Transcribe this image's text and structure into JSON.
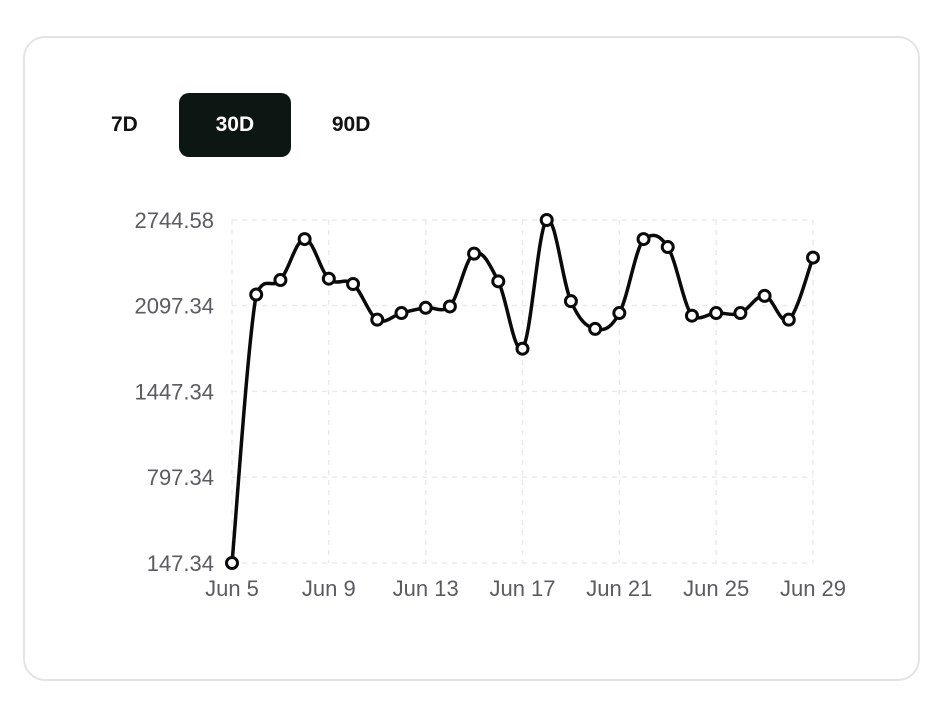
{
  "range_tabs": [
    {
      "label": "7D",
      "active": false
    },
    {
      "label": "30D",
      "active": true
    },
    {
      "label": "90D",
      "active": false
    }
  ],
  "colors": {
    "line": "#0a0a0a",
    "grid": "#ebebeb",
    "active_tab_bg": "#0c1714",
    "point_fill": "#ffffff"
  },
  "chart_data": {
    "type": "line",
    "title": "",
    "xlabel": "",
    "ylabel": "",
    "x": [
      "Jun 5",
      "Jun 6",
      "Jun 7",
      "Jun 8",
      "Jun 9",
      "Jun 10",
      "Jun 11",
      "Jun 12",
      "Jun 13",
      "Jun 14",
      "Jun 15",
      "Jun 16",
      "Jun 17",
      "Jun 18",
      "Jun 19",
      "Jun 20",
      "Jun 21",
      "Jun 22",
      "Jun 23",
      "Jun 24",
      "Jun 25",
      "Jun 26",
      "Jun 27",
      "Jun 28",
      "Jun 29"
    ],
    "values": [
      147.34,
      2180,
      2290,
      2600,
      2300,
      2260,
      1990,
      2040,
      2080,
      2090,
      2490,
      2280,
      1770,
      2744.58,
      2130,
      1920,
      2040,
      2600,
      2540,
      2020,
      2040,
      2040,
      2170,
      1990,
      2460
    ],
    "y_ticks": [
      "147.34",
      "797.34",
      "1447.34",
      "2097.34",
      "2744.58"
    ],
    "y_tick_values": [
      147.34,
      797.34,
      1447.34,
      2097.34,
      2744.58
    ],
    "x_ticks": [
      "Jun 5",
      "Jun 9",
      "Jun 13",
      "Jun 17",
      "Jun 21",
      "Jun 25",
      "Jun 29"
    ],
    "ylim": [
      147.34,
      2744.58
    ],
    "grid": true,
    "smooth": true
  }
}
